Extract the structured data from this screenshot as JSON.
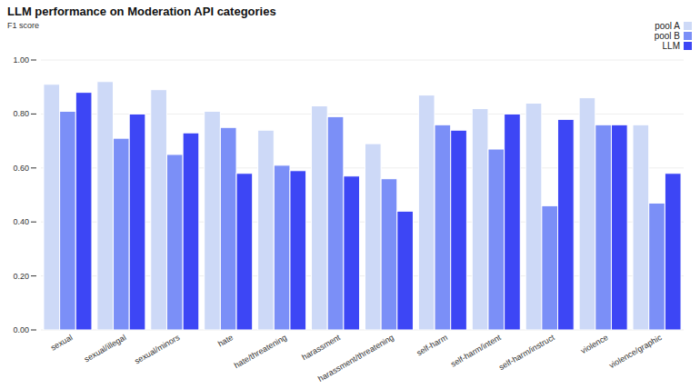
{
  "chart_data": {
    "type": "bar",
    "title": "LLM performance on Moderation API categories",
    "subtitle": "F1 score",
    "categories": [
      "sexual",
      "sexual/illegal",
      "sexual/minors",
      "hate",
      "hate/threatening",
      "harassment",
      "harassment/threatening",
      "self-harm",
      "self-harm/intent",
      "self-harm/instruct",
      "violence",
      "violence/graphic"
    ],
    "series": [
      {
        "name": "pool A",
        "color": "#cdd9f7",
        "values": [
          0.91,
          0.92,
          0.89,
          0.81,
          0.74,
          0.83,
          0.69,
          0.87,
          0.82,
          0.84,
          0.86,
          0.76
        ]
      },
      {
        "name": "pool B",
        "color": "#7b8ff7",
        "values": [
          0.81,
          0.71,
          0.65,
          0.75,
          0.61,
          0.79,
          0.56,
          0.76,
          0.67,
          0.46,
          0.76,
          0.47
        ]
      },
      {
        "name": "LLM",
        "color": "#3d46f5",
        "values": [
          0.88,
          0.8,
          0.73,
          0.58,
          0.59,
          0.57,
          0.44,
          0.74,
          0.8,
          0.78,
          0.76,
          0.58
        ]
      }
    ],
    "ylim": [
      0,
      1
    ],
    "yticks": [
      {
        "value": 0,
        "label": "0.00"
      },
      {
        "value": 0.2,
        "label": "0.20"
      },
      {
        "value": 0.4,
        "label": "0.40"
      },
      {
        "value": 0.6,
        "label": "0.60"
      },
      {
        "value": 0.8,
        "label": "0.80"
      },
      {
        "value": 1,
        "label": "1.00"
      }
    ],
    "grid": true,
    "legend": "top-right"
  }
}
